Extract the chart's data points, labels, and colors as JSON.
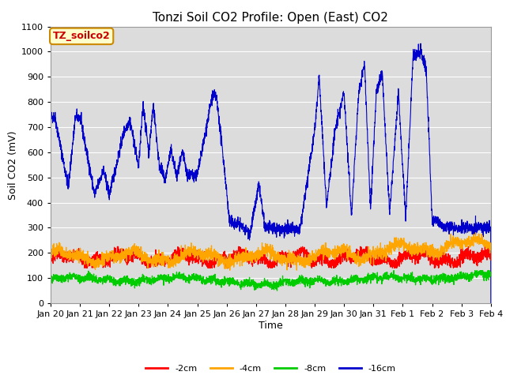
{
  "title": "Tonzi Soil CO2 Profile: Open (East) CO2",
  "xlabel": "Time",
  "ylabel": "Soil CO2 (mV)",
  "ylim": [
    0,
    1100
  ],
  "series_labels": [
    "-2cm",
    "-4cm",
    "-8cm",
    "-16cm"
  ],
  "colors": [
    "#ff0000",
    "#ffa500",
    "#00cc00",
    "#0000cc"
  ],
  "background_color": "#dcdcdc",
  "title_fontsize": 11,
  "axis_label_fontsize": 9,
  "tick_fontsize": 8,
  "legend_box_color": "#ffffcc",
  "legend_box_edge": "#cc8800",
  "legend_label": "TZ_soilco2",
  "xtick_labels": [
    "Jan 20",
    "Jan 21",
    "Jan 22",
    "Jan 23",
    "Jan 24",
    "Jan 25",
    "Jan 26",
    "Jan 27",
    "Jan 28",
    "Jan 29",
    "Jan 30",
    "Jan 31",
    "Feb 1",
    "Feb 2",
    "Feb 3",
    "Feb 4"
  ]
}
